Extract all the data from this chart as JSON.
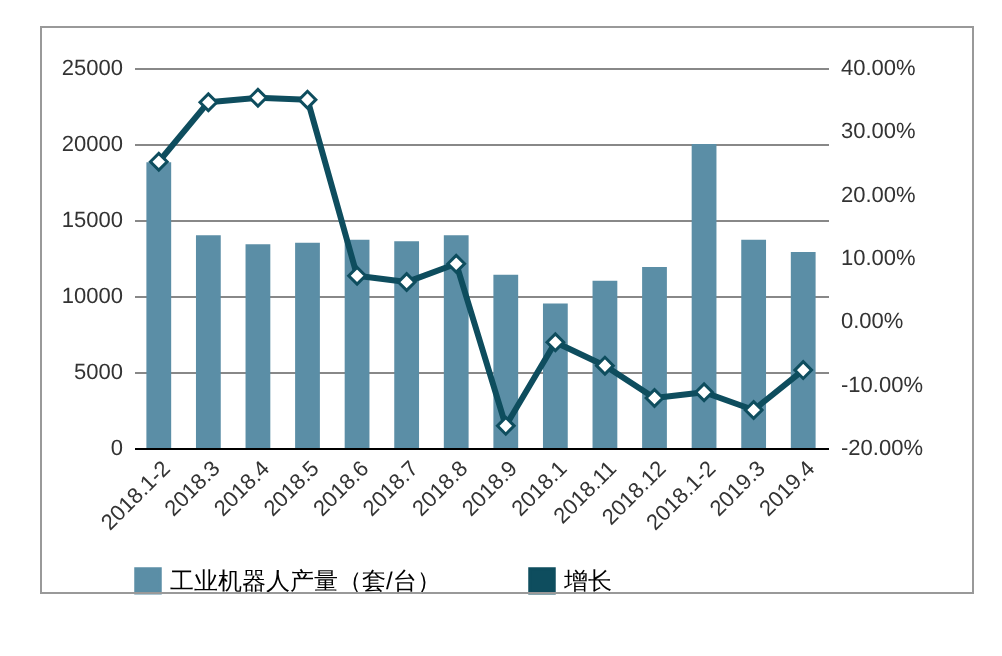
{
  "chart_data": {
    "type": "bar",
    "categories": [
      "2018.1-2",
      "2018.3",
      "2018.4",
      "2018.5",
      "2018.6",
      "2018.7",
      "2018.8",
      "2018.9",
      "2018.1",
      "2018.11",
      "2018.12",
      "2018.1-2",
      "2019.3",
      "2019.4"
    ],
    "series": [
      {
        "name": "工业机器人产量（套/台）",
        "color": "#5b8ea6",
        "values": [
          18800,
          14000,
          13400,
          13500,
          13700,
          13600,
          14000,
          11400,
          9500,
          11000,
          11900,
          20000,
          13700,
          12900
        ]
      },
      {
        "name": "增长",
        "type": "line",
        "axis": "y2",
        "color": "#0e4d5e",
        "values": [
          25.2,
          34.6,
          35.3,
          35.0,
          7.2,
          6.2,
          9.1,
          -16.5,
          -3.3,
          -7.0,
          -12.1,
          -11.2,
          -14.0,
          -7.7
        ]
      }
    ],
    "ylim": [
      0,
      25000
    ],
    "yticks": [
      0,
      5000,
      10000,
      15000,
      20000,
      25000
    ],
    "y2lim": [
      -20,
      40
    ],
    "y2ticks": [
      {
        "value": -20,
        "label": "-20.00%"
      },
      {
        "value": -10,
        "label": "-10.00%"
      },
      {
        "value": 0,
        "label": "0.00%"
      },
      {
        "value": 10,
        "label": "10.00%"
      },
      {
        "value": 20,
        "label": "20.00%"
      },
      {
        "value": 30,
        "label": "30.00%"
      },
      {
        "value": 40,
        "label": "40.00%"
      }
    ],
    "grid": "y",
    "legend": "bottom",
    "marker": "diamond",
    "line_style": "solid"
  }
}
